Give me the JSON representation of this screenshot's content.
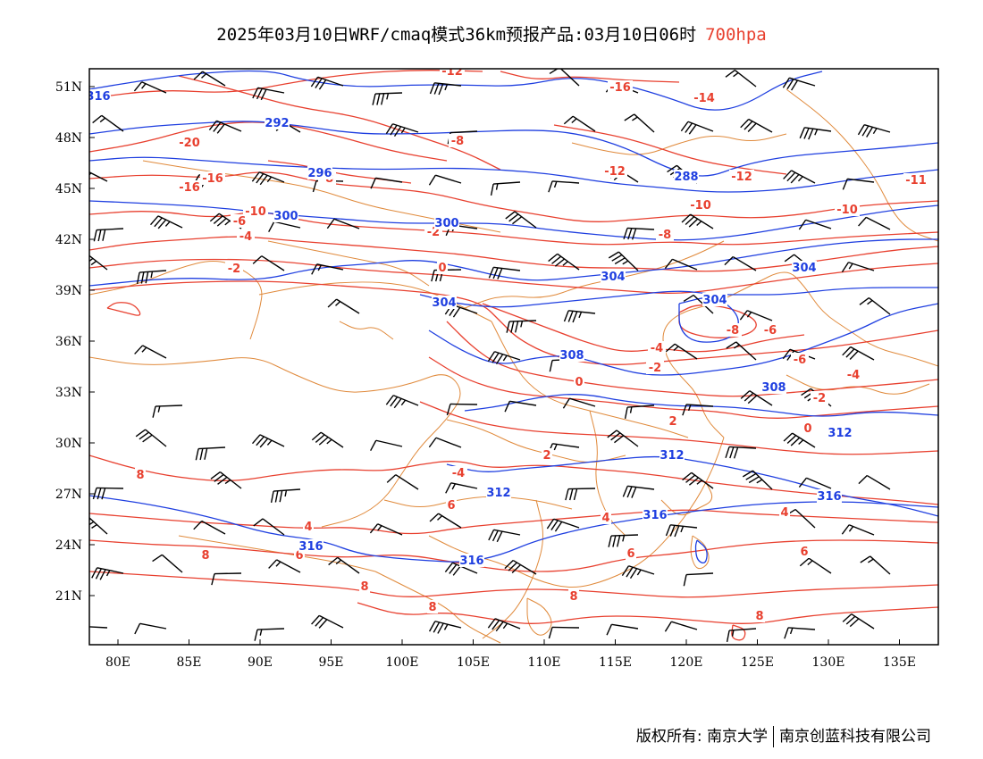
{
  "header": {
    "title": "2025年03月10日WRF/cmaq模式36km预报产品:03月10日06时",
    "level": "700hpa",
    "level_color": "#e8402f"
  },
  "axes": {
    "lat_labels": [
      "51N",
      "48N",
      "45N",
      "42N",
      "39N",
      "36N",
      "33N",
      "30N",
      "27N",
      "24N",
      "21N"
    ],
    "lon_labels": [
      "80E",
      "85E",
      "90E",
      "95E",
      "100E",
      "105E",
      "110E",
      "115E",
      "120E",
      "125E",
      "130E",
      "135E"
    ]
  },
  "colors": {
    "height_contour": "#1f3fe0",
    "temperature_contour": "#e8402f",
    "boundary": "#e08a3c",
    "wind_barb": "#000000"
  },
  "icons": {
    "wind_barb": "wind-barb-icon"
  },
  "height_labels": [
    "288",
    "292",
    "296",
    "300",
    "300",
    "304",
    "304",
    "304",
    "304",
    "308",
    "308",
    "312",
    "312",
    "312",
    "316",
    "316",
    "316",
    "316",
    "316"
  ],
  "temperature_labels": [
    "-12",
    "-16",
    "-14",
    "-20",
    "-16",
    "-8",
    "-8",
    "-12",
    "-12",
    "-11",
    "-16",
    "-10",
    "-6",
    "-4",
    "-2",
    "-2",
    "0",
    "-4",
    "-8",
    "-6",
    "-10",
    "-10",
    "-8",
    "-6",
    "-4",
    "-2",
    "0",
    "-2",
    "0",
    "2",
    "-4",
    "2",
    "4",
    "4",
    "6",
    "6",
    "8",
    "6",
    "8",
    "8",
    "8",
    "8",
    "8",
    "4",
    "6"
  ],
  "footer": {
    "copyright_left": "版权所有: 南京大学",
    "copyright_right": "南京创蓝科技有限公司"
  }
}
